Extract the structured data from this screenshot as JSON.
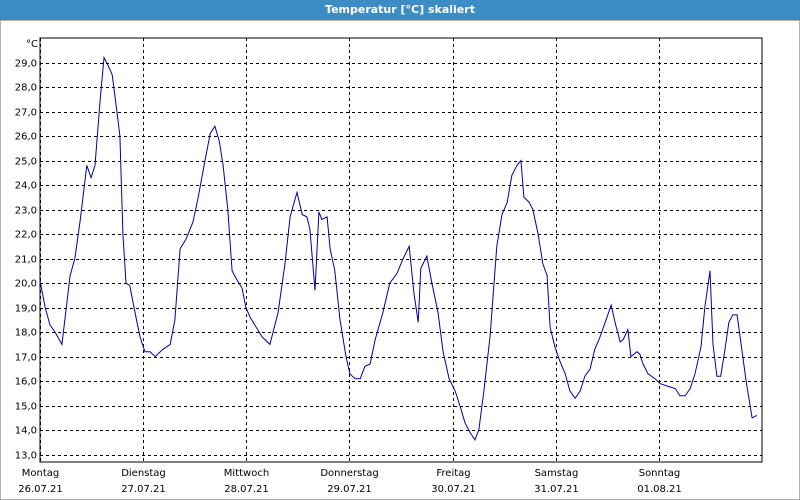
{
  "chart_data": {
    "type": "line",
    "title": "Temperatur [°C] skaliert",
    "y_unit": "°C",
    "xlim": [
      0,
      168
    ],
    "xticks": [
      {
        "value": 0,
        "label": "Montag",
        "sublabel": "26.07.21"
      },
      {
        "value": 24,
        "label": "Dienstag",
        "sublabel": "27.07.21"
      },
      {
        "value": 48,
        "label": "Mittwoch",
        "sublabel": "28.07.21"
      },
      {
        "value": 72,
        "label": "Donnerstag",
        "sublabel": "29.07.21"
      },
      {
        "value": 96,
        "label": "Freitag",
        "sublabel": "30.07.21"
      },
      {
        "value": 120,
        "label": "Samstag",
        "sublabel": "31.07.21"
      },
      {
        "value": 144,
        "label": "Sonntag",
        "sublabel": "01.08.21"
      }
    ],
    "ylim": [
      12.7,
      30.0
    ],
    "yticks": [
      {
        "value": 13,
        "label": "13,0"
      },
      {
        "value": 14,
        "label": "14,0"
      },
      {
        "value": 15,
        "label": "15,0"
      },
      {
        "value": 16,
        "label": "16,0"
      },
      {
        "value": 17,
        "label": "17,0"
      },
      {
        "value": 18,
        "label": "18,0"
      },
      {
        "value": 19,
        "label": "19,0"
      },
      {
        "value": 20,
        "label": "20,0"
      },
      {
        "value": 21,
        "label": "21,0"
      },
      {
        "value": 22,
        "label": "22,0"
      },
      {
        "value": 23,
        "label": "23,0"
      },
      {
        "value": 24,
        "label": "24,0"
      },
      {
        "value": 25,
        "label": "25,0"
      },
      {
        "value": 26,
        "label": "26,0"
      },
      {
        "value": 27,
        "label": "27,0"
      },
      {
        "value": 28,
        "label": "28,0"
      },
      {
        "value": 29,
        "label": "29,0"
      }
    ],
    "grid": true,
    "series": [
      {
        "color": "#0000a8",
        "x": [
          0,
          1.2,
          2.3,
          3.5,
          5.1,
          7.0,
          8.1,
          9.3,
          10.9,
          11.9,
          12.8,
          14.0,
          14.9,
          15.8,
          16.8,
          17.9,
          18.6,
          19.3,
          20.0,
          20.9,
          22.1,
          23.3,
          24.4,
          25.6,
          26.8,
          28.6,
          30.3,
          31.4,
          32.6,
          34.0,
          35.6,
          36.8,
          38.4,
          39.6,
          40.7,
          41.7,
          42.6,
          43.7,
          44.7,
          45.6,
          47.0,
          47.9,
          48.9,
          50.3,
          51.7,
          53.5,
          55.4,
          57.0,
          58.2,
          59.8,
          61.0,
          62.1,
          62.8,
          64.0,
          64.9,
          65.6,
          66.8,
          67.5,
          68.6,
          69.8,
          71.2,
          72.1,
          73.3,
          74.5,
          75.6,
          76.8,
          78.0,
          79.8,
          81.4,
          83.1,
          84.5,
          85.9,
          87.0,
          88.0,
          88.6,
          90.0,
          91.2,
          92.6,
          93.8,
          95.2,
          96.6,
          97.7,
          98.9,
          100.1,
          101.2,
          102.1,
          103.3,
          104.7,
          106.3,
          107.5,
          108.7,
          109.8,
          111.0,
          111.9,
          112.6,
          113.8,
          114.7,
          115.9,
          117.0,
          118.0,
          118.7,
          119.8,
          121.0,
          122.2,
          123.3,
          124.5,
          125.7,
          126.8,
          128.0,
          129.1,
          130.3,
          131.9,
          132.9,
          133.8,
          135.0,
          135.7,
          136.8,
          137.5,
          138.9,
          139.6,
          140.3,
          141.5,
          143.1,
          144.3,
          145.9,
          147.8,
          148.9,
          150.1,
          151.3,
          152.4,
          153.8,
          154.7,
          155.9,
          156.6,
          157.5,
          158.4,
          159.4,
          160.3,
          161.2,
          162.2,
          163.3,
          164.3,
          165.7,
          166.8
        ],
        "values": [
          20.1,
          19.0,
          18.3,
          18.0,
          17.5,
          20.3,
          21.0,
          22.5,
          24.8,
          24.3,
          24.8,
          27.5,
          29.2,
          28.9,
          28.5,
          27.0,
          26.0,
          22.0,
          20.0,
          19.9,
          18.8,
          17.8,
          17.2,
          17.2,
          17.0,
          17.3,
          17.5,
          18.5,
          21.4,
          21.8,
          22.5,
          23.5,
          25.0,
          26.1,
          26.4,
          25.8,
          24.8,
          23.0,
          20.5,
          20.2,
          19.8,
          19.0,
          18.6,
          18.2,
          17.8,
          17.5,
          18.8,
          20.8,
          22.7,
          23.7,
          22.8,
          22.7,
          22.2,
          19.7,
          22.9,
          22.6,
          22.7,
          21.4,
          20.5,
          18.5,
          17.0,
          16.3,
          16.1,
          16.1,
          16.6,
          16.7,
          17.7,
          18.8,
          20.0,
          20.4,
          21.0,
          21.5,
          19.6,
          18.4,
          20.6,
          21.1,
          20.0,
          18.8,
          17.2,
          16.1,
          15.6,
          15.0,
          14.3,
          13.9,
          13.6,
          14.0,
          15.6,
          17.8,
          21.5,
          22.8,
          23.3,
          24.4,
          24.8,
          25.0,
          23.5,
          23.3,
          23.0,
          22.0,
          20.8,
          20.3,
          18.2,
          17.4,
          16.8,
          16.3,
          15.6,
          15.3,
          15.6,
          16.2,
          16.5,
          17.3,
          17.8,
          18.6,
          19.1,
          18.4,
          17.6,
          17.7,
          18.1,
          17.0,
          17.2,
          17.1,
          16.7,
          16.3,
          16.1,
          15.9,
          15.8,
          15.7,
          15.4,
          15.4,
          15.7,
          16.3,
          17.4,
          19.0,
          20.5,
          17.5,
          16.2,
          16.2,
          17.3,
          18.4,
          18.7,
          18.7,
          17.3,
          16.0,
          14.5,
          14.6
        ]
      }
    ]
  }
}
